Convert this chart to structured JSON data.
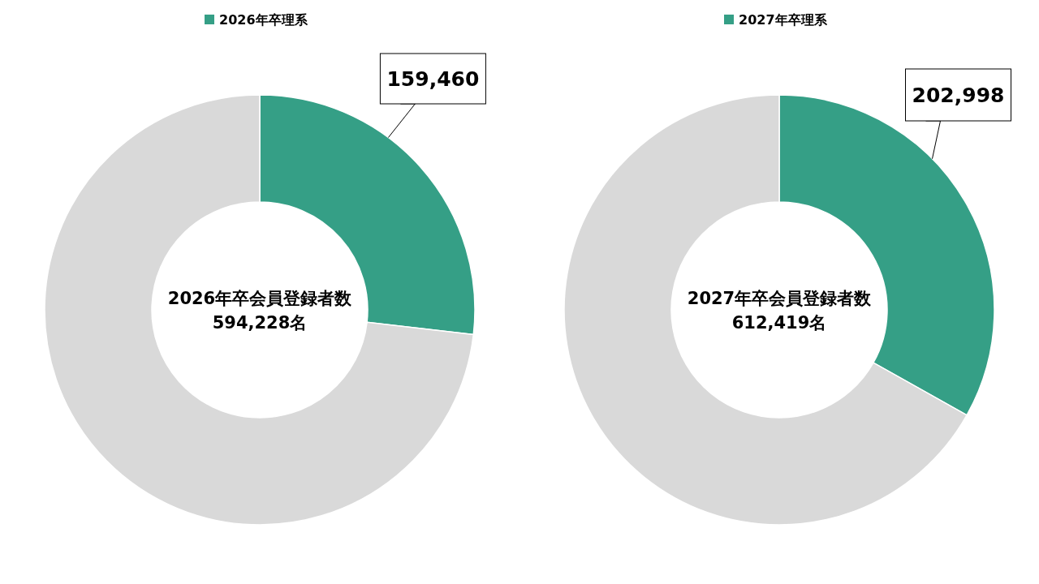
{
  "chart_data": [
    {
      "type": "donut",
      "categories": [
        "2026年卒理系",
        null
      ],
      "values": [
        159460,
        434768
      ],
      "colors": [
        "#359f86",
        "#d9d9d9"
      ],
      "value_labels": [
        "159,460",
        null
      ],
      "legend": "top",
      "annotations": [
        "2026年卒会員登録者数\n594,228名"
      ]
    },
    {
      "type": "donut",
      "categories": [
        "2027年卒理系",
        null
      ],
      "values": [
        202998,
        409421
      ],
      "colors": [
        "#359f86",
        "#d9d9d9"
      ],
      "value_labels": [
        "202,998",
        null
      ],
      "legend": "top",
      "annotations": [
        "2027年卒会員登録者数\n612,419名"
      ]
    }
  ]
}
